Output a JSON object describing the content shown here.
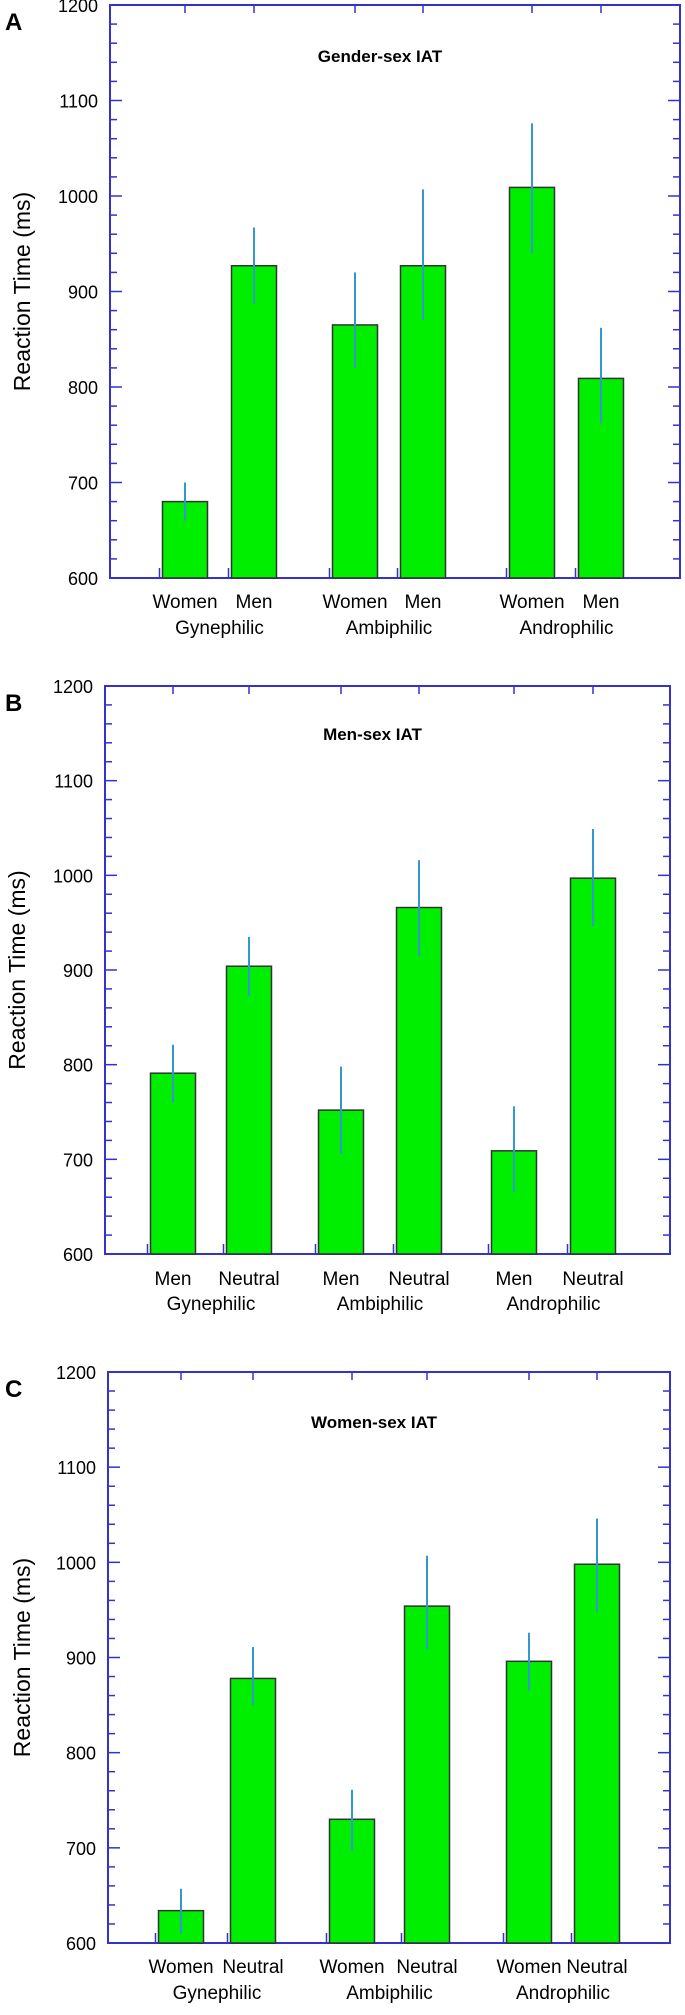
{
  "colors": {
    "bar_fill": "#00EE00",
    "bar_stroke": "#333333",
    "axis": "#3333CC",
    "error_bar": "#3399CC"
  },
  "chart_data": [
    {
      "panel": "A",
      "type": "bar",
      "title": "Gender-sex  IAT",
      "ylabel": "Reaction Time (ms)",
      "xlabel": "",
      "ylim": [
        600,
        1200
      ],
      "yticks": [
        600,
        700,
        800,
        900,
        1000,
        1100,
        1200
      ],
      "groups": [
        {
          "name": "Gynephilic",
          "bars": [
            {
              "label": "Women",
              "value": 680,
              "err_low": 660,
              "err_high": 700
            },
            {
              "label": "Men",
              "value": 927,
              "err_low": 887,
              "err_high": 967
            }
          ]
        },
        {
          "name": "Ambiphilic",
          "bars": [
            {
              "label": "Women",
              "value": 865,
              "err_low": 820,
              "err_high": 920
            },
            {
              "label": "Men",
              "value": 927,
              "err_low": 870,
              "err_high": 1007
            }
          ]
        },
        {
          "name": "Androphilic",
          "bars": [
            {
              "label": "Women",
              "value": 1009,
              "err_low": 940,
              "err_high": 1076
            },
            {
              "label": "Men",
              "value": 809,
              "err_low": 762,
              "err_high": 862
            }
          ]
        }
      ]
    },
    {
      "panel": "B",
      "type": "bar",
      "title": "Men-sex IAT",
      "ylabel": "Reaction Time (ms)",
      "xlabel": "",
      "ylim": [
        600,
        1200
      ],
      "yticks": [
        600,
        700,
        800,
        900,
        1000,
        1100,
        1200
      ],
      "groups": [
        {
          "name": "Gynephilic",
          "bars": [
            {
              "label": "Men",
              "value": 791,
              "err_low": 760,
              "err_high": 821
            },
            {
              "label": "Neutral",
              "value": 904,
              "err_low": 873,
              "err_high": 935
            }
          ]
        },
        {
          "name": "Ambiphilic",
          "bars": [
            {
              "label": "Men",
              "value": 752,
              "err_low": 706,
              "err_high": 798
            },
            {
              "label": "Neutral",
              "value": 966,
              "err_low": 915,
              "err_high": 1016
            }
          ]
        },
        {
          "name": "Androphilic",
          "bars": [
            {
              "label": "Men",
              "value": 709,
              "err_low": 665,
              "err_high": 756
            },
            {
              "label": "Neutral",
              "value": 997,
              "err_low": 946,
              "err_high": 1049
            }
          ]
        }
      ]
    },
    {
      "panel": "C",
      "type": "bar",
      "title": "Women-sex IAT",
      "ylabel": "Reaction Time (ms)",
      "xlabel": "",
      "ylim": [
        600,
        1200
      ],
      "yticks": [
        600,
        700,
        800,
        900,
        1000,
        1100,
        1200
      ],
      "groups": [
        {
          "name": "Gynephilic",
          "bars": [
            {
              "label": "Women",
              "value": 634,
              "err_low": 610,
              "err_high": 657
            },
            {
              "label": "Neutral",
              "value": 878,
              "err_low": 850,
              "err_high": 911
            }
          ]
        },
        {
          "name": "Ambiphilic",
          "bars": [
            {
              "label": "Women",
              "value": 730,
              "err_low": 697,
              "err_high": 761
            },
            {
              "label": "Neutral",
              "value": 954,
              "err_low": 909,
              "err_high": 1007
            }
          ]
        },
        {
          "name": "Androphilic",
          "bars": [
            {
              "label": "Women",
              "value": 896,
              "err_low": 865,
              "err_high": 926
            },
            {
              "label": "Neutral",
              "value": 998,
              "err_low": 948,
              "err_high": 1046
            }
          ]
        }
      ]
    }
  ]
}
